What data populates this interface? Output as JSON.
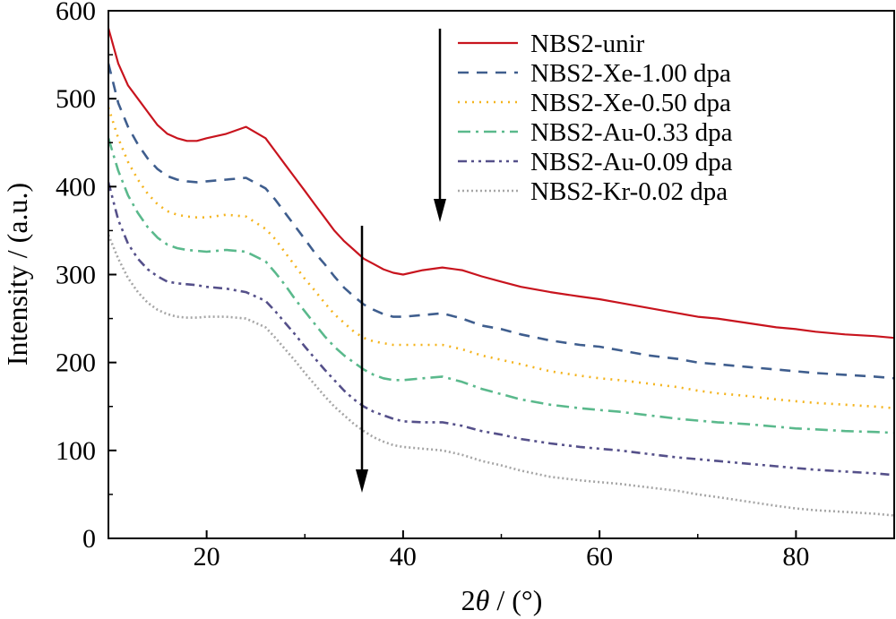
{
  "chart_data": {
    "type": "line",
    "xlabel": "2θ / (°)",
    "xlabel_prefix": "2",
    "xlabel_symbol": "θ",
    "xlabel_suffix": " / (°)",
    "ylabel": "Intensity / (a.u.)",
    "xlim": [
      10,
      90
    ],
    "ylim": [
      0,
      600
    ],
    "x_ticks": [
      20,
      40,
      60,
      80
    ],
    "x_tick_labels": [
      "20",
      "40",
      "60",
      "80"
    ],
    "y_ticks": [
      0,
      100,
      200,
      300,
      400,
      500,
      600
    ],
    "y_tick_labels": [
      "0",
      "100",
      "200",
      "300",
      "400",
      "500",
      "600"
    ],
    "legend_position": "top-right",
    "grid": false,
    "series": [
      {
        "name": "NBS2-unir",
        "color": "#c8141e",
        "style": "solid",
        "x": [
          10,
          11,
          12,
          13,
          14,
          15,
          16,
          17,
          18,
          19,
          20,
          22,
          24,
          26,
          27,
          28,
          29,
          30,
          31,
          32,
          33,
          34,
          35,
          36,
          37,
          38,
          39,
          40,
          42,
          44,
          46,
          48,
          50,
          52,
          55,
          58,
          60,
          62,
          65,
          68,
          70,
          72,
          75,
          78,
          80,
          82,
          85,
          88,
          90
        ],
        "y": [
          580,
          540,
          515,
          500,
          485,
          470,
          460,
          455,
          452,
          452,
          455,
          460,
          468,
          455,
          440,
          425,
          410,
          395,
          380,
          365,
          350,
          338,
          328,
          318,
          312,
          306,
          302,
          300,
          305,
          308,
          305,
          298,
          292,
          286,
          280,
          275,
          272,
          268,
          262,
          256,
          252,
          250,
          245,
          240,
          238,
          235,
          232,
          230,
          228
        ]
      },
      {
        "name": "NBS2-Xe-1.00 dpa",
        "color": "#3f5e8e",
        "style": "dashed",
        "x": [
          10,
          11,
          12,
          13,
          14,
          15,
          16,
          17,
          18,
          19,
          20,
          22,
          24,
          26,
          27,
          28,
          29,
          30,
          31,
          32,
          33,
          34,
          35,
          36,
          37,
          38,
          39,
          40,
          42,
          44,
          46,
          48,
          50,
          52,
          55,
          58,
          60,
          62,
          65,
          68,
          70,
          72,
          75,
          78,
          80,
          82,
          85,
          88,
          90
        ],
        "y": [
          540,
          495,
          468,
          448,
          432,
          420,
          412,
          408,
          406,
          405,
          406,
          408,
          410,
          398,
          385,
          370,
          355,
          340,
          325,
          312,
          298,
          285,
          275,
          266,
          260,
          255,
          252,
          252,
          254,
          256,
          250,
          242,
          238,
          232,
          225,
          220,
          218,
          214,
          208,
          204,
          200,
          198,
          195,
          192,
          190,
          188,
          186,
          184,
          182
        ]
      },
      {
        "name": "NBS2-Xe-0.50 dpa",
        "color": "#f4b41e",
        "style": "dotted",
        "x": [
          10,
          11,
          12,
          13,
          14,
          15,
          16,
          17,
          18,
          19,
          20,
          22,
          24,
          26,
          27,
          28,
          29,
          30,
          31,
          32,
          33,
          34,
          35,
          36,
          37,
          38,
          39,
          40,
          42,
          44,
          46,
          48,
          50,
          52,
          55,
          58,
          60,
          62,
          65,
          68,
          70,
          72,
          75,
          78,
          80,
          82,
          85,
          88,
          90
        ],
        "y": [
          490,
          455,
          428,
          408,
          392,
          380,
          372,
          368,
          366,
          365,
          365,
          368,
          366,
          352,
          340,
          325,
          310,
          295,
          282,
          268,
          255,
          245,
          235,
          228,
          224,
          222,
          220,
          220,
          220,
          220,
          215,
          208,
          203,
          198,
          190,
          185,
          182,
          180,
          176,
          172,
          168,
          165,
          162,
          158,
          156,
          154,
          152,
          150,
          148
        ]
      },
      {
        "name": "NBS2-Au-0.33 dpa",
        "color": "#5ab98c",
        "style": "dashdot",
        "x": [
          10,
          11,
          12,
          13,
          14,
          15,
          16,
          17,
          18,
          19,
          20,
          22,
          24,
          26,
          27,
          28,
          29,
          30,
          31,
          32,
          33,
          34,
          35,
          36,
          37,
          38,
          39,
          40,
          42,
          44,
          46,
          48,
          50,
          52,
          55,
          58,
          60,
          62,
          65,
          68,
          70,
          72,
          75,
          78,
          80,
          82,
          85,
          88,
          90
        ],
        "y": [
          455,
          418,
          390,
          370,
          354,
          342,
          334,
          330,
          328,
          327,
          326,
          328,
          326,
          315,
          302,
          288,
          272,
          258,
          244,
          230,
          218,
          208,
          200,
          192,
          186,
          182,
          180,
          180,
          182,
          184,
          178,
          170,
          164,
          158,
          152,
          148,
          146,
          144,
          140,
          136,
          134,
          132,
          130,
          127,
          125,
          124,
          122,
          121,
          120
        ]
      },
      {
        "name": "NBS2-Au-0.09 dpa",
        "color": "#55508a",
        "style": "dashdotdot",
        "x": [
          10,
          11,
          12,
          13,
          14,
          15,
          16,
          17,
          18,
          19,
          20,
          22,
          24,
          26,
          27,
          28,
          29,
          30,
          31,
          32,
          33,
          34,
          35,
          36,
          37,
          38,
          39,
          40,
          42,
          44,
          46,
          48,
          50,
          52,
          55,
          58,
          60,
          62,
          65,
          68,
          70,
          72,
          75,
          78,
          80,
          82,
          85,
          88,
          90
        ],
        "y": [
          405,
          362,
          335,
          318,
          306,
          298,
          292,
          290,
          289,
          288,
          286,
          284,
          280,
          270,
          258,
          245,
          232,
          218,
          205,
          192,
          180,
          168,
          158,
          150,
          144,
          140,
          136,
          133,
          132,
          132,
          128,
          122,
          118,
          113,
          108,
          104,
          102,
          100,
          96,
          92,
          90,
          88,
          85,
          82,
          80,
          78,
          76,
          74,
          72
        ]
      },
      {
        "name": "NBS2-Kr-0.02 dpa",
        "color": "#a6a6a6",
        "style": "densedot",
        "x": [
          10,
          11,
          12,
          13,
          14,
          15,
          16,
          17,
          18,
          19,
          20,
          22,
          24,
          26,
          27,
          28,
          29,
          30,
          31,
          32,
          33,
          34,
          35,
          36,
          37,
          38,
          39,
          40,
          42,
          44,
          46,
          48,
          50,
          52,
          55,
          58,
          60,
          62,
          65,
          68,
          70,
          72,
          75,
          78,
          80,
          82,
          85,
          88,
          90
        ],
        "y": [
          345,
          318,
          296,
          280,
          268,
          260,
          255,
          252,
          251,
          251,
          252,
          252,
          250,
          240,
          228,
          215,
          202,
          188,
          175,
          162,
          150,
          140,
          130,
          122,
          115,
          110,
          106,
          104,
          102,
          100,
          95,
          88,
          83,
          77,
          70,
          66,
          64,
          62,
          58,
          54,
          50,
          47,
          42,
          37,
          34,
          32,
          30,
          28,
          26
        ]
      }
    ]
  }
}
